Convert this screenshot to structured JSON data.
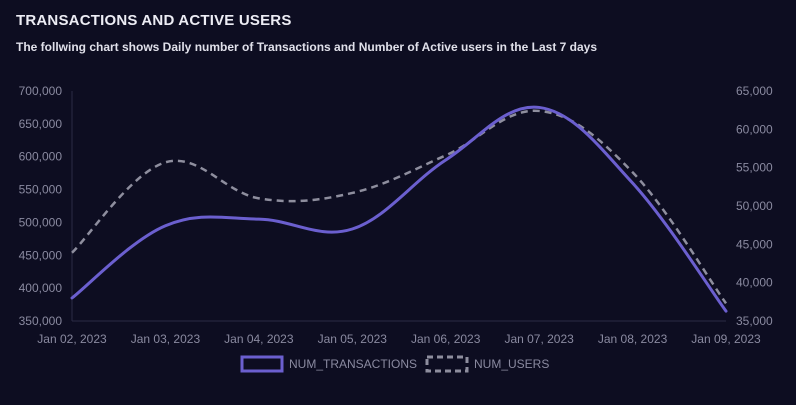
{
  "header": {
    "title": "TRANSACTIONS AND ACTIVE USERS",
    "subtitle": "The follwing chart shows Daily number of Transactions and Number of Active users in the Last 7 days"
  },
  "chart_data": {
    "type": "line",
    "title": "TRANSACTIONS AND ACTIVE USERS",
    "subtitle": "The follwing chart shows Daily number of Transactions and Number of Active users in the Last 7 days",
    "x": [
      "Jan 02, 2023",
      "Jan 03, 2023",
      "Jan 04, 2023",
      "Jan 05, 2023",
      "Jan 06, 2023",
      "Jan 07, 2023",
      "Jan 08, 2023",
      "Jan 09, 2023"
    ],
    "y_left": {
      "ylim": [
        350000,
        700000
      ],
      "ticks": [
        350000,
        400000,
        450000,
        500000,
        550000,
        600000,
        650000,
        700000
      ],
      "tick_labels": [
        "350,000",
        "400,000",
        "450,000",
        "500,000",
        "550,000",
        "600,000",
        "650,000",
        "700,000"
      ]
    },
    "y_right": {
      "ylim": [
        35000,
        65000
      ],
      "ticks": [
        35000,
        40000,
        45000,
        50000,
        55000,
        60000,
        65000
      ],
      "tick_labels": [
        "35,000",
        "40,000",
        "45,000",
        "50,000",
        "55,000",
        "60,000",
        "65,000"
      ]
    },
    "series": [
      {
        "name": "NUM_TRANSACTIONS",
        "axis": "left",
        "style": "solid",
        "color": "#6b5fcf",
        "values": [
          385000,
          495000,
          505000,
          490000,
          595000,
          675000,
          560000,
          365000
        ]
      },
      {
        "name": "NUM_USERS",
        "axis": "right",
        "style": "dashed",
        "color": "#8e8e9e",
        "values": [
          43900,
          55700,
          51000,
          51700,
          56600,
          62400,
          54400,
          37300
        ]
      }
    ],
    "legend": "bottom-center",
    "grid": false
  }
}
